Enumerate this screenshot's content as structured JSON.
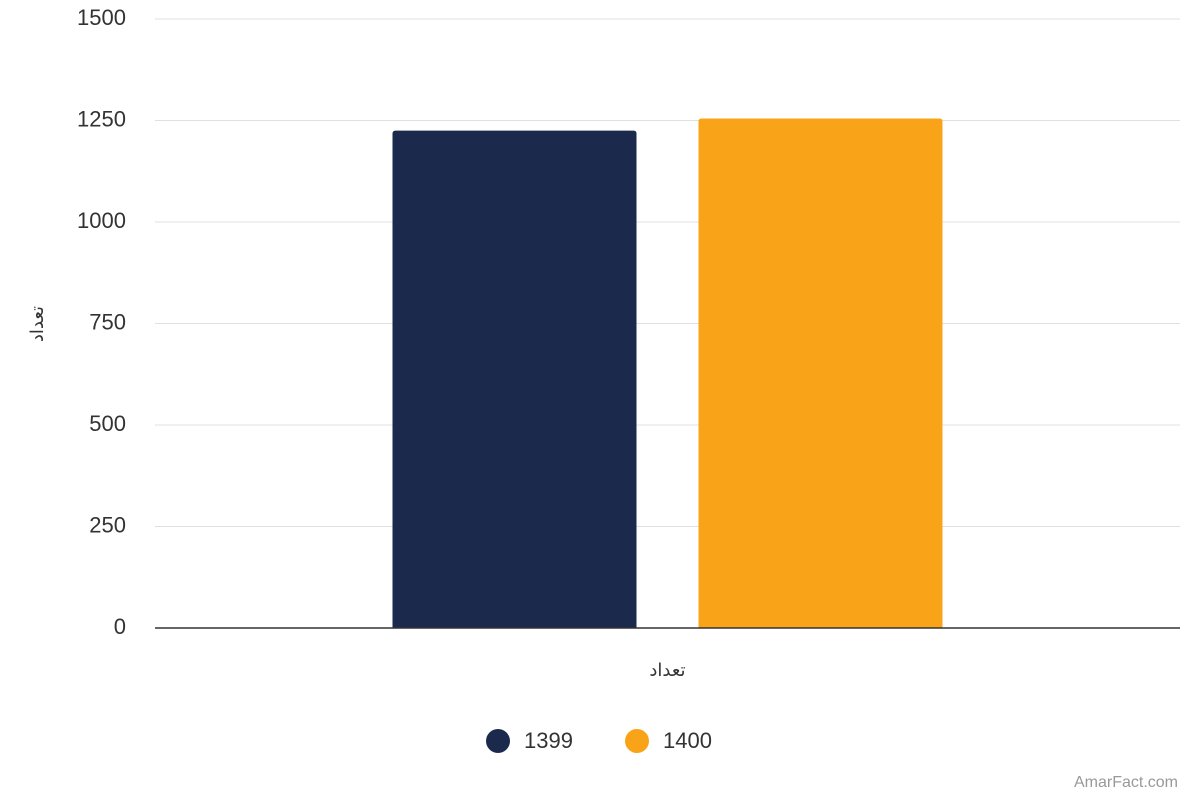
{
  "chart_data": {
    "type": "bar",
    "y_label": "تعداد",
    "categories": [
      "تعداد"
    ],
    "series": [
      {
        "name": "1399",
        "color": "#1b2a4c",
        "values": [
          1225
        ]
      },
      {
        "name": "1400",
        "color": "#f9a418",
        "values": [
          1255
        ]
      }
    ],
    "ylim": [
      0,
      1500
    ],
    "yticks": [
      0,
      250,
      500,
      750,
      1000,
      1250,
      1500
    ],
    "grid": true,
    "legend": "bottom",
    "credit": "AmarFact.com"
  }
}
